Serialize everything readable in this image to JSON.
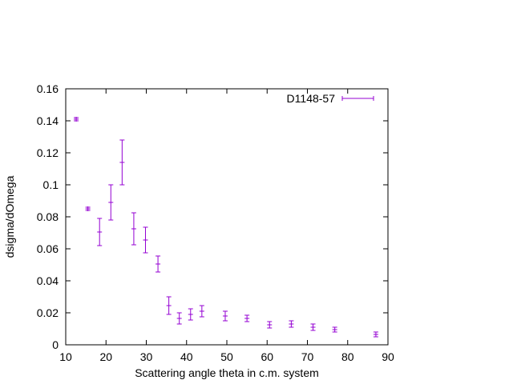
{
  "chart_data": {
    "type": "scatter",
    "title": "",
    "xlabel": "Scattering angle theta in c.m. system",
    "ylabel": "dsigma/dOmega",
    "xlim": [
      10,
      90
    ],
    "ylim": [
      0,
      0.16
    ],
    "xticks": [
      10,
      20,
      30,
      40,
      50,
      60,
      70,
      80,
      90
    ],
    "yticks": [
      0,
      0.02,
      0.04,
      0.06,
      0.08,
      0.1,
      0.12,
      0.14,
      0.16
    ],
    "xtick_labels": [
      "10",
      "20",
      "30",
      "40",
      "50",
      "60",
      "70",
      "80",
      "90"
    ],
    "ytick_labels": [
      "0",
      "0.02",
      "0.04",
      "0.06",
      "0.08",
      "0.1",
      "0.12",
      "0.14",
      "0.16"
    ],
    "grid": false,
    "legend_position": "top-right",
    "color": "#9400d3",
    "series": [
      {
        "name": "D1148-57",
        "style": "error-bars",
        "points": [
          {
            "x": 12.6,
            "y": 0.141,
            "err": 0.001
          },
          {
            "x": 15.5,
            "y": 0.085,
            "err": 0.001
          },
          {
            "x": 18.4,
            "y": 0.0705,
            "err": 0.0085
          },
          {
            "x": 21.2,
            "y": 0.089,
            "err": 0.011
          },
          {
            "x": 24.0,
            "y": 0.114,
            "err": 0.014
          },
          {
            "x": 26.9,
            "y": 0.0725,
            "err": 0.01
          },
          {
            "x": 29.8,
            "y": 0.0655,
            "err": 0.008
          },
          {
            "x": 32.9,
            "y": 0.0505,
            "err": 0.005
          },
          {
            "x": 35.6,
            "y": 0.0245,
            "err": 0.0055
          },
          {
            "x": 38.2,
            "y": 0.0165,
            "err": 0.0035
          },
          {
            "x": 41.0,
            "y": 0.019,
            "err": 0.0035
          },
          {
            "x": 43.8,
            "y": 0.021,
            "err": 0.0035
          },
          {
            "x": 49.6,
            "y": 0.018,
            "err": 0.003
          },
          {
            "x": 55.0,
            "y": 0.0165,
            "err": 0.002
          },
          {
            "x": 60.6,
            "y": 0.0125,
            "err": 0.002
          },
          {
            "x": 66.0,
            "y": 0.013,
            "err": 0.002
          },
          {
            "x": 71.4,
            "y": 0.011,
            "err": 0.002
          },
          {
            "x": 76.8,
            "y": 0.0095,
            "err": 0.0015
          },
          {
            "x": 87.0,
            "y": 0.0065,
            "err": 0.0015
          }
        ]
      }
    ]
  }
}
